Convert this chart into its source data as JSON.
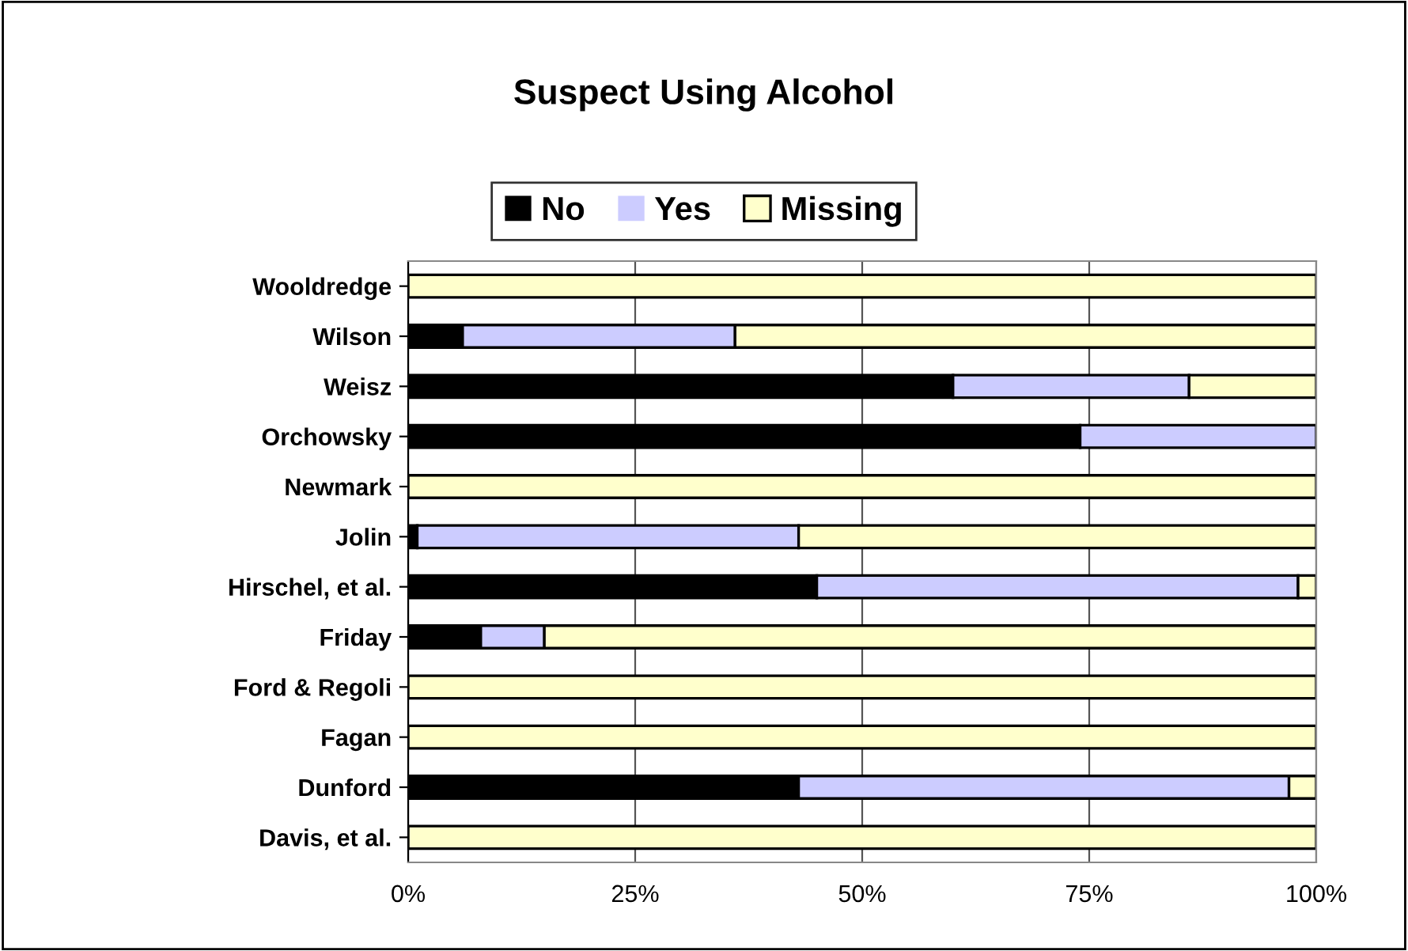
{
  "chart_data": {
    "type": "bar",
    "orientation": "horizontal",
    "stacked": true,
    "title": "Suspect Using Alcohol",
    "categories": [
      "Wooldredge",
      "Wilson",
      "Weisz",
      "Orchowsky",
      "Newmark",
      "Jolin",
      "Hirschel, et al.",
      "Friday",
      "Ford & Regoli",
      "Fagan",
      "Dunford",
      "Davis, et al."
    ],
    "series": [
      {
        "name": "No",
        "color": "#000000",
        "values": [
          0,
          6,
          60,
          74,
          0,
          1,
          45,
          8,
          0,
          0,
          43,
          0
        ]
      },
      {
        "name": "Yes",
        "color": "#ccccff",
        "values": [
          0,
          30,
          26,
          26,
          0,
          42,
          53,
          7,
          0,
          0,
          54,
          0
        ]
      },
      {
        "name": "Missing",
        "color": "#ffffcc",
        "values": [
          100,
          64,
          14,
          0,
          100,
          57,
          2,
          85,
          100,
          100,
          3,
          100
        ]
      }
    ],
    "xlim": [
      0,
      100
    ],
    "xticks": [
      {
        "value": 0,
        "label": "0%"
      },
      {
        "value": 25,
        "label": "25%"
      },
      {
        "value": 50,
        "label": "50%"
      },
      {
        "value": 75,
        "label": "75%"
      },
      {
        "value": 100,
        "label": "100%"
      }
    ],
    "grid": "x",
    "legend": "top"
  }
}
